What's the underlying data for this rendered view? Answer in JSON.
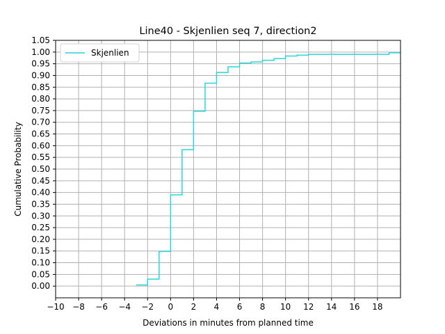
{
  "chart_data": {
    "type": "line",
    "title": "Line40 - Skjenlien seq 7, direction2",
    "xlabel": "Deviations in minutes from planned time",
    "ylabel": "Cumulative Probability",
    "xlim": [
      -10,
      20
    ],
    "ylim": [
      -0.05,
      1.05
    ],
    "x_ticks": [
      -10,
      -8,
      -6,
      -4,
      -2,
      0,
      2,
      4,
      6,
      8,
      10,
      12,
      14,
      16,
      18
    ],
    "y_ticks": [
      0.0,
      0.05,
      0.1,
      0.15,
      0.2,
      0.25,
      0.3,
      0.35,
      0.4,
      0.45,
      0.5,
      0.55,
      0.6,
      0.65,
      0.7,
      0.75,
      0.8,
      0.85,
      0.9,
      0.95,
      1.0,
      1.05
    ],
    "grid": true,
    "legend_position": "top-left",
    "series": [
      {
        "name": "Skjenlien",
        "color": "#2ad4dc",
        "step": "post",
        "x": [
          -3,
          -2,
          -1,
          0,
          1,
          2,
          3,
          4,
          5,
          6,
          7,
          8,
          9,
          10,
          11,
          12,
          13,
          14,
          15,
          16,
          17,
          18,
          19,
          20
        ],
        "y": [
          0.005,
          0.03,
          0.148,
          0.39,
          0.583,
          0.747,
          0.867,
          0.913,
          0.937,
          0.953,
          0.958,
          0.965,
          0.972,
          0.983,
          0.987,
          0.99,
          0.99,
          0.99,
          0.99,
          0.99,
          0.99,
          0.99,
          0.997,
          0.997
        ]
      }
    ]
  }
}
